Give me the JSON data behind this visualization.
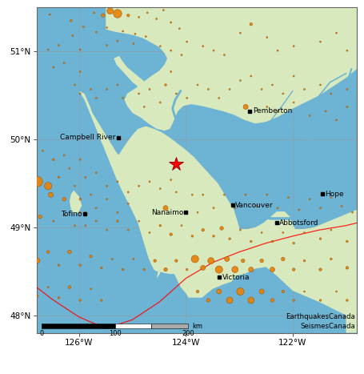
{
  "xlim": [
    -126.8,
    -120.8
  ],
  "ylim": [
    47.8,
    51.5
  ],
  "land_color": "#d8eabd",
  "water_color": "#6db3d4",
  "grid_color": "#888888",
  "cities": [
    {
      "name": "Campbell River",
      "lon": -125.27,
      "lat": 50.02,
      "ha": "right",
      "va": "center",
      "dot_side": "left"
    },
    {
      "name": "Pemberton",
      "lon": -122.8,
      "lat": 50.32,
      "ha": "left",
      "va": "center",
      "dot_side": "left"
    },
    {
      "name": "Tofino",
      "lon": -125.9,
      "lat": 49.15,
      "ha": "right",
      "va": "center",
      "dot_side": "right"
    },
    {
      "name": "Nanaimo",
      "lon": -124.0,
      "lat": 49.17,
      "ha": "right",
      "va": "center",
      "dot_side": "right"
    },
    {
      "name": "Vancouver",
      "lon": -123.12,
      "lat": 49.25,
      "ha": "left",
      "va": "center",
      "dot_side": "left"
    },
    {
      "name": "Hope",
      "lon": -121.45,
      "lat": 49.38,
      "ha": "left",
      "va": "center",
      "dot_side": "left"
    },
    {
      "name": "Abbotsford",
      "lon": -122.3,
      "lat": 49.05,
      "ha": "left",
      "va": "center",
      "dot_side": "left"
    },
    {
      "name": "Victoria",
      "lon": -123.37,
      "lat": 48.43,
      "ha": "left",
      "va": "center",
      "dot_side": "left"
    }
  ],
  "star": {
    "lon": -124.18,
    "lat": 49.72
  },
  "dot_color": "#E8820A",
  "dot_edge_color": "#9A5200",
  "star_color": "red",
  "background_land": "#d8eabd",
  "background_water": "#6db3d4",
  "xticks": [
    -126,
    -124,
    -122
  ],
  "yticks": [
    48,
    49,
    50,
    51
  ],
  "xtick_labels": [
    "126°W",
    "124°W",
    "122°W"
  ],
  "ytick_labels": [
    "48°N",
    "49°N",
    "50°N",
    "51°N"
  ],
  "credit_text1": "EarthquakesCanada",
  "credit_text2": "SeismesCanada",
  "plate_boundary": [
    [
      -126.8,
      48.32
    ],
    [
      -126.5,
      48.18
    ],
    [
      -126.0,
      47.98
    ],
    [
      -125.5,
      47.85
    ],
    [
      -125.0,
      47.95
    ],
    [
      -124.5,
      48.15
    ],
    [
      -124.0,
      48.42
    ],
    [
      -123.5,
      48.6
    ],
    [
      -123.0,
      48.72
    ],
    [
      -122.5,
      48.82
    ],
    [
      -122.0,
      48.9
    ],
    [
      -121.5,
      48.97
    ],
    [
      -121.0,
      49.02
    ],
    [
      -120.8,
      49.05
    ]
  ],
  "earthquakes": [
    {
      "lon": -126.55,
      "lat": 51.42,
      "mag": 2.5
    },
    {
      "lon": -126.15,
      "lat": 51.35,
      "mag": 2.8
    },
    {
      "lon": -125.72,
      "lat": 51.44,
      "mag": 2.4
    },
    {
      "lon": -125.55,
      "lat": 51.41,
      "mag": 3.2
    },
    {
      "lon": -125.42,
      "lat": 51.46,
      "mag": 3.8
    },
    {
      "lon": -125.28,
      "lat": 51.43,
      "mag": 4.2
    },
    {
      "lon": -125.08,
      "lat": 51.41,
      "mag": 3.0
    },
    {
      "lon": -124.88,
      "lat": 51.39,
      "mag": 2.6
    },
    {
      "lon": -124.72,
      "lat": 51.44,
      "mag": 2.5
    },
    {
      "lon": -124.55,
      "lat": 51.37,
      "mag": 2.4
    },
    {
      "lon": -124.42,
      "lat": 51.47,
      "mag": 2.3
    },
    {
      "lon": -124.28,
      "lat": 51.33,
      "mag": 2.5
    },
    {
      "lon": -124.12,
      "lat": 51.26,
      "mag": 2.4
    },
    {
      "lon": -126.12,
      "lat": 51.18,
      "mag": 2.5
    },
    {
      "lon": -125.92,
      "lat": 51.28,
      "mag": 2.6
    },
    {
      "lon": -125.68,
      "lat": 51.22,
      "mag": 2.4
    },
    {
      "lon": -125.48,
      "lat": 51.27,
      "mag": 2.5
    },
    {
      "lon": -125.18,
      "lat": 51.23,
      "mag": 2.4
    },
    {
      "lon": -124.95,
      "lat": 51.2,
      "mag": 2.5
    },
    {
      "lon": -124.75,
      "lat": 51.17,
      "mag": 2.3
    },
    {
      "lon": -126.58,
      "lat": 51.02,
      "mag": 2.6
    },
    {
      "lon": -126.38,
      "lat": 51.07,
      "mag": 2.4
    },
    {
      "lon": -125.98,
      "lat": 51.02,
      "mag": 2.5
    },
    {
      "lon": -125.48,
      "lat": 51.07,
      "mag": 2.6
    },
    {
      "lon": -125.28,
      "lat": 51.12,
      "mag": 2.4
    },
    {
      "lon": -124.98,
      "lat": 51.09,
      "mag": 2.5
    },
    {
      "lon": -124.48,
      "lat": 51.06,
      "mag": 2.4
    },
    {
      "lon": -124.28,
      "lat": 51.01,
      "mag": 2.5
    },
    {
      "lon": -124.08,
      "lat": 50.96,
      "mag": 2.6
    },
    {
      "lon": -123.98,
      "lat": 51.11,
      "mag": 2.4
    },
    {
      "lon": -123.68,
      "lat": 51.06,
      "mag": 2.5
    },
    {
      "lon": -123.48,
      "lat": 51.01,
      "mag": 2.4
    },
    {
      "lon": -123.28,
      "lat": 50.96,
      "mag": 2.5
    },
    {
      "lon": -122.98,
      "lat": 51.21,
      "mag": 2.4
    },
    {
      "lon": -122.78,
      "lat": 51.31,
      "mag": 3.0
    },
    {
      "lon": -122.48,
      "lat": 51.16,
      "mag": 2.4
    },
    {
      "lon": -122.28,
      "lat": 51.01,
      "mag": 2.5
    },
    {
      "lon": -121.98,
      "lat": 51.06,
      "mag": 2.4
    },
    {
      "lon": -121.48,
      "lat": 51.11,
      "mag": 2.5
    },
    {
      "lon": -121.18,
      "lat": 51.21,
      "mag": 2.4
    },
    {
      "lon": -120.98,
      "lat": 51.01,
      "mag": 2.5
    },
    {
      "lon": -126.48,
      "lat": 50.82,
      "mag": 2.5
    },
    {
      "lon": -126.28,
      "lat": 50.87,
      "mag": 2.6
    },
    {
      "lon": -125.98,
      "lat": 50.77,
      "mag": 2.4
    },
    {
      "lon": -126.08,
      "lat": 50.62,
      "mag": 2.5
    },
    {
      "lon": -125.98,
      "lat": 50.52,
      "mag": 2.6
    },
    {
      "lon": -125.78,
      "lat": 50.57,
      "mag": 2.4
    },
    {
      "lon": -125.68,
      "lat": 50.47,
      "mag": 2.5
    },
    {
      "lon": -125.48,
      "lat": 50.57,
      "mag": 2.4
    },
    {
      "lon": -125.28,
      "lat": 50.62,
      "mag": 2.5
    },
    {
      "lon": -125.18,
      "lat": 50.47,
      "mag": 2.4
    },
    {
      "lon": -124.88,
      "lat": 50.52,
      "mag": 2.5
    },
    {
      "lon": -124.78,
      "lat": 50.37,
      "mag": 2.4
    },
    {
      "lon": -124.68,
      "lat": 50.57,
      "mag": 2.5
    },
    {
      "lon": -124.48,
      "lat": 50.42,
      "mag": 2.4
    },
    {
      "lon": -124.38,
      "lat": 50.62,
      "mag": 2.8
    },
    {
      "lon": -124.28,
      "lat": 50.77,
      "mag": 2.4
    },
    {
      "lon": -124.18,
      "lat": 50.52,
      "mag": 2.5
    },
    {
      "lon": -123.98,
      "lat": 50.47,
      "mag": 2.4
    },
    {
      "lon": -123.78,
      "lat": 50.62,
      "mag": 2.5
    },
    {
      "lon": -123.58,
      "lat": 50.57,
      "mag": 2.6
    },
    {
      "lon": -123.38,
      "lat": 50.47,
      "mag": 2.4
    },
    {
      "lon": -123.18,
      "lat": 50.57,
      "mag": 2.5
    },
    {
      "lon": -122.98,
      "lat": 50.67,
      "mag": 2.4
    },
    {
      "lon": -122.78,
      "lat": 50.72,
      "mag": 2.5
    },
    {
      "lon": -122.58,
      "lat": 50.57,
      "mag": 2.4
    },
    {
      "lon": -122.38,
      "lat": 50.62,
      "mag": 2.5
    },
    {
      "lon": -122.18,
      "lat": 50.52,
      "mag": 2.4
    },
    {
      "lon": -121.98,
      "lat": 50.72,
      "mag": 2.5
    },
    {
      "lon": -121.78,
      "lat": 50.57,
      "mag": 2.4
    },
    {
      "lon": -121.48,
      "lat": 50.62,
      "mag": 2.5
    },
    {
      "lon": -121.28,
      "lat": 50.52,
      "mag": 2.4
    },
    {
      "lon": -120.98,
      "lat": 50.57,
      "mag": 2.5
    },
    {
      "lon": -122.88,
      "lat": 50.37,
      "mag": 3.5
    },
    {
      "lon": -122.48,
      "lat": 50.37,
      "mag": 2.4
    },
    {
      "lon": -122.28,
      "lat": 50.32,
      "mag": 2.5
    },
    {
      "lon": -121.98,
      "lat": 50.42,
      "mag": 2.4
    },
    {
      "lon": -121.68,
      "lat": 50.27,
      "mag": 2.5
    },
    {
      "lon": -121.38,
      "lat": 50.32,
      "mag": 2.4
    },
    {
      "lon": -121.18,
      "lat": 50.22,
      "mag": 2.5
    },
    {
      "lon": -120.98,
      "lat": 50.37,
      "mag": 2.4
    },
    {
      "lon": -126.68,
      "lat": 49.87,
      "mag": 2.5
    },
    {
      "lon": -126.48,
      "lat": 49.77,
      "mag": 2.8
    },
    {
      "lon": -126.28,
      "lat": 49.82,
      "mag": 2.4
    },
    {
      "lon": -126.18,
      "lat": 49.67,
      "mag": 2.5
    },
    {
      "lon": -125.98,
      "lat": 49.77,
      "mag": 2.4
    },
    {
      "lon": -125.88,
      "lat": 49.57,
      "mag": 2.5
    },
    {
      "lon": -125.68,
      "lat": 49.62,
      "mag": 2.6
    },
    {
      "lon": -125.48,
      "lat": 49.47,
      "mag": 2.4
    },
    {
      "lon": -125.28,
      "lat": 49.52,
      "mag": 2.5
    },
    {
      "lon": -125.08,
      "lat": 49.4,
      "mag": 2.4
    },
    {
      "lon": -124.88,
      "lat": 49.47,
      "mag": 2.5
    },
    {
      "lon": -124.68,
      "lat": 49.52,
      "mag": 2.4
    },
    {
      "lon": -124.48,
      "lat": 49.44,
      "mag": 2.5
    },
    {
      "lon": -124.28,
      "lat": 49.54,
      "mag": 2.6
    },
    {
      "lon": -124.18,
      "lat": 49.4,
      "mag": 2.4
    },
    {
      "lon": -124.38,
      "lat": 49.22,
      "mag": 3.5
    },
    {
      "lon": -123.88,
      "lat": 49.37,
      "mag": 2.5
    },
    {
      "lon": -123.78,
      "lat": 49.17,
      "mag": 2.4
    },
    {
      "lon": -123.68,
      "lat": 49.37,
      "mag": 2.5
    },
    {
      "lon": -123.48,
      "lat": 49.22,
      "mag": 2.6
    },
    {
      "lon": -123.28,
      "lat": 49.37,
      "mag": 2.4
    },
    {
      "lon": -123.08,
      "lat": 49.22,
      "mag": 2.5
    },
    {
      "lon": -122.88,
      "lat": 49.37,
      "mag": 2.4
    },
    {
      "lon": -122.68,
      "lat": 49.24,
      "mag": 2.5
    },
    {
      "lon": -122.48,
      "lat": 49.37,
      "mag": 2.4
    },
    {
      "lon": -122.28,
      "lat": 49.22,
      "mag": 2.5
    },
    {
      "lon": -122.08,
      "lat": 49.34,
      "mag": 2.4
    },
    {
      "lon": -121.88,
      "lat": 49.2,
      "mag": 2.5
    },
    {
      "lon": -121.68,
      "lat": 49.32,
      "mag": 2.4
    },
    {
      "lon": -121.48,
      "lat": 49.22,
      "mag": 2.5
    },
    {
      "lon": -121.28,
      "lat": 49.34,
      "mag": 2.4
    },
    {
      "lon": -121.08,
      "lat": 49.24,
      "mag": 2.5
    },
    {
      "lon": -120.88,
      "lat": 49.17,
      "mag": 2.4
    },
    {
      "lon": -126.78,
      "lat": 49.52,
      "mag": 4.5
    },
    {
      "lon": -126.58,
      "lat": 49.47,
      "mag": 4.0
    },
    {
      "lon": -126.53,
      "lat": 49.37,
      "mag": 3.5
    },
    {
      "lon": -126.38,
      "lat": 49.57,
      "mag": 2.8
    },
    {
      "lon": -126.28,
      "lat": 49.32,
      "mag": 3.2
    },
    {
      "lon": -126.08,
      "lat": 49.47,
      "mag": 2.5
    },
    {
      "lon": -125.98,
      "lat": 49.32,
      "mag": 2.8
    },
    {
      "lon": -125.88,
      "lat": 49.17,
      "mag": 2.4
    },
    {
      "lon": -125.78,
      "lat": 49.37,
      "mag": 2.5
    },
    {
      "lon": -125.68,
      "lat": 49.22,
      "mag": 2.4
    },
    {
      "lon": -125.48,
      "lat": 49.32,
      "mag": 2.5
    },
    {
      "lon": -125.28,
      "lat": 49.17,
      "mag": 2.4
    },
    {
      "lon": -125.08,
      "lat": 49.27,
      "mag": 2.5
    },
    {
      "lon": -126.73,
      "lat": 49.12,
      "mag": 3.2
    },
    {
      "lon": -126.48,
      "lat": 49.07,
      "mag": 2.5
    },
    {
      "lon": -126.28,
      "lat": 49.14,
      "mag": 2.4
    },
    {
      "lon": -126.08,
      "lat": 49.02,
      "mag": 2.5
    },
    {
      "lon": -125.98,
      "lat": 49.17,
      "mag": 2.4
    },
    {
      "lon": -125.88,
      "lat": 49.02,
      "mag": 2.5
    },
    {
      "lon": -125.68,
      "lat": 49.07,
      "mag": 2.4
    },
    {
      "lon": -125.48,
      "lat": 48.97,
      "mag": 2.5
    },
    {
      "lon": -125.28,
      "lat": 49.07,
      "mag": 2.8
    },
    {
      "lon": -125.08,
      "lat": 48.97,
      "mag": 2.5
    },
    {
      "lon": -124.88,
      "lat": 49.07,
      "mag": 2.4
    },
    {
      "lon": -124.68,
      "lat": 48.94,
      "mag": 2.5
    },
    {
      "lon": -124.48,
      "lat": 49.02,
      "mag": 2.8
    },
    {
      "lon": -124.28,
      "lat": 48.92,
      "mag": 3.0
    },
    {
      "lon": -124.08,
      "lat": 49.02,
      "mag": 2.5
    },
    {
      "lon": -123.88,
      "lat": 48.9,
      "mag": 2.8
    },
    {
      "lon": -123.68,
      "lat": 48.97,
      "mag": 3.0
    },
    {
      "lon": -123.48,
      "lat": 48.9,
      "mag": 2.8
    },
    {
      "lon": -123.33,
      "lat": 48.99,
      "mag": 3.2
    },
    {
      "lon": -123.18,
      "lat": 48.87,
      "mag": 2.8
    },
    {
      "lon": -122.98,
      "lat": 48.97,
      "mag": 2.5
    },
    {
      "lon": -122.78,
      "lat": 48.84,
      "mag": 2.8
    },
    {
      "lon": -122.58,
      "lat": 48.94,
      "mag": 2.5
    },
    {
      "lon": -122.38,
      "lat": 48.84,
      "mag": 2.8
    },
    {
      "lon": -122.18,
      "lat": 48.94,
      "mag": 2.5
    },
    {
      "lon": -121.98,
      "lat": 48.82,
      "mag": 2.8
    },
    {
      "lon": -121.78,
      "lat": 48.94,
      "mag": 2.5
    },
    {
      "lon": -121.48,
      "lat": 48.87,
      "mag": 2.8
    },
    {
      "lon": -121.28,
      "lat": 48.97,
      "mag": 2.5
    },
    {
      "lon": -120.98,
      "lat": 48.84,
      "mag": 2.8
    },
    {
      "lon": -126.78,
      "lat": 48.62,
      "mag": 3.5
    },
    {
      "lon": -126.58,
      "lat": 48.72,
      "mag": 3.0
    },
    {
      "lon": -126.38,
      "lat": 48.57,
      "mag": 2.8
    },
    {
      "lon": -126.18,
      "lat": 48.72,
      "mag": 3.2
    },
    {
      "lon": -125.98,
      "lat": 48.57,
      "mag": 2.8
    },
    {
      "lon": -125.78,
      "lat": 48.67,
      "mag": 3.0
    },
    {
      "lon": -125.58,
      "lat": 48.54,
      "mag": 2.8
    },
    {
      "lon": -125.38,
      "lat": 48.64,
      "mag": 2.5
    },
    {
      "lon": -125.18,
      "lat": 48.52,
      "mag": 2.8
    },
    {
      "lon": -124.98,
      "lat": 48.64,
      "mag": 2.5
    },
    {
      "lon": -124.78,
      "lat": 48.52,
      "mag": 2.8
    },
    {
      "lon": -124.58,
      "lat": 48.62,
      "mag": 3.0
    },
    {
      "lon": -124.38,
      "lat": 48.52,
      "mag": 3.2
    },
    {
      "lon": -124.18,
      "lat": 48.62,
      "mag": 3.0
    },
    {
      "lon": -123.98,
      "lat": 48.52,
      "mag": 2.8
    },
    {
      "lon": -123.83,
      "lat": 48.64,
      "mag": 4.0
    },
    {
      "lon": -123.68,
      "lat": 48.54,
      "mag": 3.5
    },
    {
      "lon": -123.53,
      "lat": 48.62,
      "mag": 3.8
    },
    {
      "lon": -123.38,
      "lat": 48.52,
      "mag": 4.0
    },
    {
      "lon": -123.23,
      "lat": 48.64,
      "mag": 3.5
    },
    {
      "lon": -123.08,
      "lat": 48.52,
      "mag": 3.8
    },
    {
      "lon": -122.93,
      "lat": 48.62,
      "mag": 3.2
    },
    {
      "lon": -122.78,
      "lat": 48.52,
      "mag": 3.5
    },
    {
      "lon": -122.58,
      "lat": 48.62,
      "mag": 3.2
    },
    {
      "lon": -122.38,
      "lat": 48.52,
      "mag": 3.5
    },
    {
      "lon": -122.18,
      "lat": 48.64,
      "mag": 3.2
    },
    {
      "lon": -121.98,
      "lat": 48.52,
      "mag": 3.0
    },
    {
      "lon": -121.78,
      "lat": 48.62,
      "mag": 2.8
    },
    {
      "lon": -121.48,
      "lat": 48.52,
      "mag": 3.0
    },
    {
      "lon": -121.28,
      "lat": 48.64,
      "mag": 2.8
    },
    {
      "lon": -120.98,
      "lat": 48.54,
      "mag": 3.0
    },
    {
      "lon": -126.78,
      "lat": 48.22,
      "mag": 2.8
    },
    {
      "lon": -126.58,
      "lat": 48.32,
      "mag": 2.5
    },
    {
      "lon": -126.38,
      "lat": 48.2,
      "mag": 2.8
    },
    {
      "lon": -126.18,
      "lat": 48.32,
      "mag": 3.0
    },
    {
      "lon": -125.98,
      "lat": 48.17,
      "mag": 2.8
    },
    {
      "lon": -125.78,
      "lat": 48.3,
      "mag": 2.5
    },
    {
      "lon": -125.58,
      "lat": 48.17,
      "mag": 2.8
    },
    {
      "lon": -123.78,
      "lat": 48.27,
      "mag": 3.0
    },
    {
      "lon": -123.58,
      "lat": 48.17,
      "mag": 3.2
    },
    {
      "lon": -123.38,
      "lat": 48.27,
      "mag": 3.5
    },
    {
      "lon": -123.18,
      "lat": 48.17,
      "mag": 3.8
    },
    {
      "lon": -122.98,
      "lat": 48.27,
      "mag": 4.0
    },
    {
      "lon": -122.78,
      "lat": 48.17,
      "mag": 3.8
    },
    {
      "lon": -122.58,
      "lat": 48.27,
      "mag": 3.5
    },
    {
      "lon": -122.38,
      "lat": 48.17,
      "mag": 3.2
    },
    {
      "lon": -122.18,
      "lat": 48.27,
      "mag": 3.0
    },
    {
      "lon": -121.98,
      "lat": 48.17,
      "mag": 2.8
    },
    {
      "lon": -121.78,
      "lat": 48.27,
      "mag": 2.5
    },
    {
      "lon": -121.48,
      "lat": 48.17,
      "mag": 2.8
    },
    {
      "lon": -121.18,
      "lat": 48.27,
      "mag": 2.5
    },
    {
      "lon": -120.98,
      "lat": 48.17,
      "mag": 2.8
    }
  ]
}
